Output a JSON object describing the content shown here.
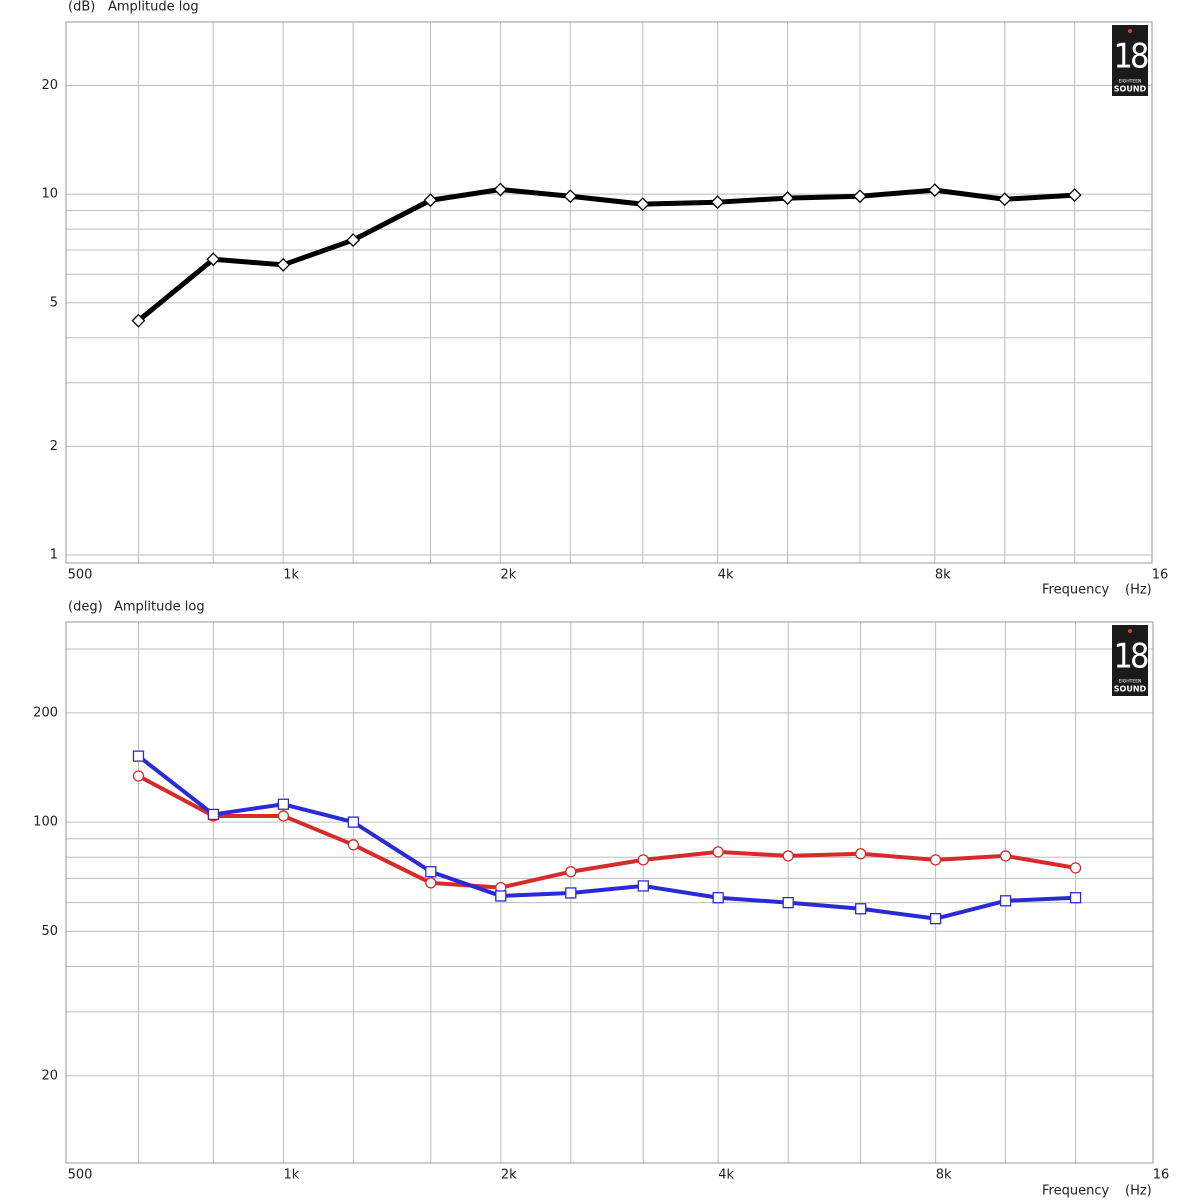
{
  "chart_data": [
    {
      "type": "line",
      "y_unit": "(dB)",
      "ylabel": "Amplitude log",
      "xlabel": "Frequency",
      "x_unit": "(Hz)",
      "logo": [
        "18",
        "EIGHTEEN",
        "SOUND"
      ],
      "xscale": "log",
      "yscale": "log",
      "grid": true,
      "x": [
        630,
        800,
        1000,
        1250,
        1600,
        2000,
        2500,
        3150,
        4000,
        5000,
        6300,
        8000,
        10000,
        12500
      ],
      "xlim": [
        500,
        16000
      ],
      "xticks": [
        500,
        {
          "value": 1000,
          "label": "1k"
        },
        {
          "value": 2000,
          "label": "2k"
        },
        {
          "value": 4000,
          "label": "4k"
        },
        {
          "value": 8000,
          "label": "8k"
        },
        {
          "value": 16000,
          "label": "16"
        }
      ],
      "xminor": [
        630,
        800,
        1250,
        1600,
        2500,
        3150,
        5000,
        6300,
        10000,
        12500
      ],
      "ylim": [
        0.95,
        30
      ],
      "yticks": [
        1,
        2,
        5,
        10,
        20
      ],
      "yminor": [
        3,
        4,
        6,
        7,
        8,
        9
      ],
      "series": [
        {
          "color": "#000000",
          "marker": "diamond",
          "values": [
            4.46,
            6.6,
            6.37,
            7.46,
            9.62,
            10.3,
            9.87,
            9.38,
            9.5,
            9.75,
            9.87,
            10.26,
            9.68,
            9.94
          ]
        }
      ]
    },
    {
      "type": "line",
      "y_unit": "(deg)",
      "ylabel": "Amplitude log",
      "xlabel": "Frequency",
      "x_unit": "(Hz)",
      "logo": [
        "18",
        "EIGHTEEN",
        "SOUND"
      ],
      "xscale": "log",
      "yscale": "log",
      "grid": true,
      "x": [
        630,
        800,
        1000,
        1250,
        1600,
        2000,
        2500,
        3150,
        4000,
        5000,
        6300,
        8000,
        10000,
        12500
      ],
      "xlim": [
        500,
        16000
      ],
      "xticks": [
        500,
        {
          "value": 1000,
          "label": "1k"
        },
        {
          "value": 2000,
          "label": "2k"
        },
        {
          "value": 4000,
          "label": "4k"
        },
        {
          "value": 8000,
          "label": "8k"
        },
        {
          "value": 16000,
          "label": "16"
        }
      ],
      "xminor": [
        630,
        800,
        1250,
        1600,
        2500,
        3150,
        5000,
        6300,
        10000,
        12500
      ],
      "ylim": [
        11.5,
        356
      ],
      "yticks": [
        20,
        50,
        100,
        200
      ],
      "yminor": [
        30,
        40,
        60,
        70,
        80,
        90,
        300
      ],
      "series": [
        {
          "color": "#d62b2b",
          "marker": "circle",
          "values": [
            134,
            104,
            104,
            86.6,
            68,
            66,
            73,
            78.7,
            82.8,
            80.7,
            81.8,
            78.7,
            80.7,
            74.8
          ]
        },
        {
          "color": "#2b2bd6",
          "marker": "square",
          "values": [
            152,
            105,
            112,
            100,
            73,
            62.6,
            63.8,
            66.7,
            61.9,
            60,
            57.7,
            54.2,
            60.7,
            61.9
          ]
        }
      ]
    }
  ]
}
